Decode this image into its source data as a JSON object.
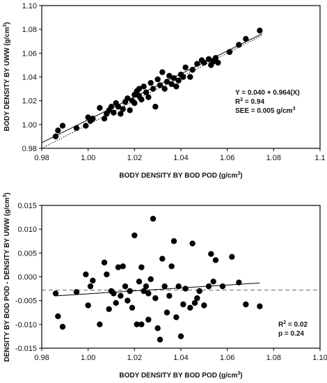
{
  "chart_data": [
    {
      "type": "scatter",
      "xlabel": "BODY DENSITY BY BOD POD (g/cm",
      "xlabel_sup": "3",
      "xlabel_end": ")",
      "ylabel": "BODY DENSITY BY  UWW (g/cm",
      "ylabel_sup": "3",
      "ylabel_end": ")",
      "xlim": [
        0.98,
        1.1
      ],
      "ylim": [
        0.98,
        1.1
      ],
      "x_ticks": [
        "0.98",
        "1.00",
        "1.02",
        "1.04",
        "1.06",
        "1.08",
        "1.1"
      ],
      "y_ticks": [
        "0.98",
        "1.00",
        "1.02",
        "1.04",
        "1.06",
        "1.08",
        "1.10"
      ],
      "x_tick_values": [
        0.98,
        1.0,
        1.02,
        1.04,
        1.06,
        1.08,
        1.1
      ],
      "y_tick_values": [
        0.98,
        1.0,
        1.02,
        1.04,
        1.06,
        1.08,
        1.1
      ],
      "grid": false,
      "annotations": [
        "Y = 0.040 + 0.964(X)",
        "R",
        "2",
        " = 0.94",
        "SEE = 0.005 g/cm",
        "3"
      ],
      "regression": {
        "intercept": 0.04,
        "slope": 0.964
      },
      "identity_line": true,
      "points": [
        {
          "x": 0.986,
          "y": 0.99
        },
        {
          "x": 0.987,
          "y": 0.995
        },
        {
          "x": 0.989,
          "y": 0.999
        },
        {
          "x": 0.995,
          "y": 0.997
        },
        {
          "x": 0.999,
          "y": 0.999
        },
        {
          "x": 1.0,
          "y": 1.006
        },
        {
          "x": 1.001,
          "y": 1.003
        },
        {
          "x": 1.002,
          "y": 1.005
        },
        {
          "x": 1.005,
          "y": 1.014
        },
        {
          "x": 1.007,
          "y": 1.005
        },
        {
          "x": 1.008,
          "y": 1.009
        },
        {
          "x": 1.009,
          "y": 1.012
        },
        {
          "x": 1.01,
          "y": 1.015
        },
        {
          "x": 1.011,
          "y": 1.01
        },
        {
          "x": 1.012,
          "y": 1.018
        },
        {
          "x": 1.013,
          "y": 1.015
        },
        {
          "x": 1.014,
          "y": 1.009
        },
        {
          "x": 1.015,
          "y": 1.013
        },
        {
          "x": 1.016,
          "y": 1.019
        },
        {
          "x": 1.017,
          "y": 1.022
        },
        {
          "x": 1.018,
          "y": 1.012
        },
        {
          "x": 1.019,
          "y": 1.02
        },
        {
          "x": 1.02,
          "y": 1.025
        },
        {
          "x": 1.02,
          "y": 1.018
        },
        {
          "x": 1.021,
          "y": 1.028
        },
        {
          "x": 1.022,
          "y": 1.024
        },
        {
          "x": 1.022,
          "y": 1.03
        },
        {
          "x": 1.023,
          "y": 1.021
        },
        {
          "x": 1.024,
          "y": 1.032
        },
        {
          "x": 1.025,
          "y": 1.027
        },
        {
          "x": 1.026,
          "y": 1.023
        },
        {
          "x": 1.027,
          "y": 1.035
        },
        {
          "x": 1.028,
          "y": 1.03
        },
        {
          "x": 1.029,
          "y": 1.015
        },
        {
          "x": 1.03,
          "y": 1.038
        },
        {
          "x": 1.031,
          "y": 1.033
        },
        {
          "x": 1.032,
          "y": 1.044
        },
        {
          "x": 1.033,
          "y": 1.03
        },
        {
          "x": 1.034,
          "y": 1.036
        },
        {
          "x": 1.035,
          "y": 1.041
        },
        {
          "x": 1.036,
          "y": 1.034
        },
        {
          "x": 1.037,
          "y": 1.039
        },
        {
          "x": 1.038,
          "y": 1.032
        },
        {
          "x": 1.039,
          "y": 1.037
        },
        {
          "x": 1.04,
          "y": 1.042
        },
        {
          "x": 1.041,
          "y": 1.04
        },
        {
          "x": 1.042,
          "y": 1.048
        },
        {
          "x": 1.044,
          "y": 1.04
        },
        {
          "x": 1.045,
          "y": 1.046
        },
        {
          "x": 1.047,
          "y": 1.051
        },
        {
          "x": 1.049,
          "y": 1.054
        },
        {
          "x": 1.05,
          "y": 1.052
        },
        {
          "x": 1.052,
          "y": 1.055
        },
        {
          "x": 1.053,
          "y": 1.05
        },
        {
          "x": 1.054,
          "y": 1.053
        },
        {
          "x": 1.055,
          "y": 1.056
        },
        {
          "x": 1.056,
          "y": 1.052
        },
        {
          "x": 1.061,
          "y": 1.061
        },
        {
          "x": 1.065,
          "y": 1.067
        },
        {
          "x": 1.068,
          "y": 1.072
        },
        {
          "x": 1.074,
          "y": 1.079
        }
      ]
    },
    {
      "type": "scatter",
      "xlabel": "BODY DENSITY BY BOD POD (g/cm",
      "xlabel_sup": "3",
      "xlabel_end": ")",
      "ylabel": "DENSITY BY BOD POD - DENSITY BY UWW (g/cm",
      "ylabel_sup": "3",
      "ylabel_end": ")",
      "xlim": [
        0.98,
        1.1
      ],
      "ylim": [
        -0.015,
        0.015
      ],
      "x_ticks": [
        "0.98",
        "1.00",
        "1.02",
        "1.04",
        "1.06",
        "1.08",
        "1.10"
      ],
      "y_ticks": [
        "0.015",
        "0.010",
        "0.005",
        "0.000",
        "-0.005",
        "-0.010",
        "-0.015"
      ],
      "x_tick_values": [
        0.98,
        1.0,
        1.02,
        1.04,
        1.06,
        1.08,
        1.1
      ],
      "y_tick_values": [
        0.015,
        0.01,
        0.005,
        0.0,
        -0.005,
        -0.01,
        -0.015
      ],
      "grid": false,
      "annotations": [
        "R",
        "2",
        " = 0.02",
        "p = 0.24"
      ],
      "mean_difference": -0.0028,
      "trend_line": {
        "x": [
          0.986,
          1.074
        ],
        "y": [
          -0.004,
          -0.0013
        ]
      },
      "points": [
        {
          "x": 0.986,
          "y": -0.0035
        },
        {
          "x": 0.987,
          "y": -0.0083
        },
        {
          "x": 0.989,
          "y": -0.0105
        },
        {
          "x": 0.995,
          "y": -0.0032
        },
        {
          "x": 0.999,
          "y": 0.0005
        },
        {
          "x": 1.0,
          "y": -0.006
        },
        {
          "x": 1.001,
          "y": -0.002
        },
        {
          "x": 1.002,
          "y": -0.0008
        },
        {
          "x": 1.005,
          "y": -0.01
        },
        {
          "x": 1.007,
          "y": 0.003
        },
        {
          "x": 1.008,
          "y": 0.0005
        },
        {
          "x": 1.009,
          "y": -0.0068
        },
        {
          "x": 1.01,
          "y": -0.003
        },
        {
          "x": 1.011,
          "y": -0.0035
        },
        {
          "x": 1.012,
          "y": -0.0055
        },
        {
          "x": 1.013,
          "y": 0.002
        },
        {
          "x": 1.014,
          "y": -0.004
        },
        {
          "x": 1.015,
          "y": 0.0022
        },
        {
          "x": 1.016,
          "y": -0.002
        },
        {
          "x": 1.017,
          "y": -0.005
        },
        {
          "x": 1.018,
          "y": -0.003
        },
        {
          "x": 1.019,
          "y": -0.0065
        },
        {
          "x": 1.02,
          "y": 0.0087
        },
        {
          "x": 1.021,
          "y": -0.01
        },
        {
          "x": 1.022,
          "y": -0.001
        },
        {
          "x": 1.023,
          "y": 0.002
        },
        {
          "x": 1.023,
          "y": -0.01
        },
        {
          "x": 1.024,
          "y": -0.003
        },
        {
          "x": 1.025,
          "y": -0.002
        },
        {
          "x": 1.026,
          "y": -0.0035
        },
        {
          "x": 1.026,
          "y": -0.009
        },
        {
          "x": 1.027,
          "y": -0.0005
        },
        {
          "x": 1.028,
          "y": 0.0122
        },
        {
          "x": 1.029,
          "y": -0.0045
        },
        {
          "x": 1.03,
          "y": -0.0108
        },
        {
          "x": 1.031,
          "y": -0.0132
        },
        {
          "x": 1.032,
          "y": 0.0038
        },
        {
          "x": 1.033,
          "y": -0.002
        },
        {
          "x": 1.034,
          "y": -0.0075
        },
        {
          "x": 1.035,
          "y": -0.004
        },
        {
          "x": 1.036,
          "y": 0.0022
        },
        {
          "x": 1.037,
          "y": 0.0075
        },
        {
          "x": 1.038,
          "y": -0.0085
        },
        {
          "x": 1.039,
          "y": -0.002
        },
        {
          "x": 1.04,
          "y": -0.0125
        },
        {
          "x": 1.041,
          "y": -0.0058
        },
        {
          "x": 1.042,
          "y": -0.0025
        },
        {
          "x": 1.044,
          "y": -0.0065
        },
        {
          "x": 1.045,
          "y": 0.007
        },
        {
          "x": 1.046,
          "y": -0.0055
        },
        {
          "x": 1.047,
          "y": -0.0045
        },
        {
          "x": 1.048,
          "y": -0.003
        },
        {
          "x": 1.05,
          "y": -0.006
        },
        {
          "x": 1.052,
          "y": -0.002
        },
        {
          "x": 1.053,
          "y": 0.0048
        },
        {
          "x": 1.054,
          "y": -0.001
        },
        {
          "x": 1.055,
          "y": 0.0035
        },
        {
          "x": 1.058,
          "y": -0.002
        },
        {
          "x": 1.062,
          "y": 0.0042
        },
        {
          "x": 1.065,
          "y": -0.0012
        },
        {
          "x": 1.068,
          "y": -0.0058
        },
        {
          "x": 1.074,
          "y": -0.0062
        }
      ]
    }
  ]
}
